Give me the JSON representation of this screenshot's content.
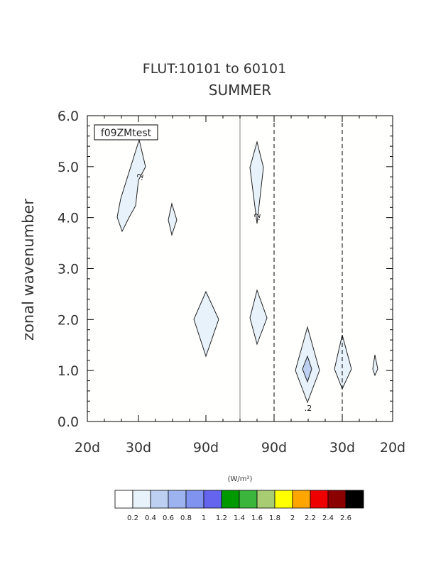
{
  "chart_data": {
    "type": "contour",
    "title": "FLUT:10101 to 60101",
    "subtitle": "SUMMER",
    "case_label": "f09ZMtest",
    "ylabel": "zonal wavenumber",
    "ylim": [
      0,
      6
    ],
    "yticks": [
      "0.0",
      "1.0",
      "2.0",
      "3.0",
      "4.0",
      "5.0",
      "6.0"
    ],
    "xlim": [
      -1,
      1
    ],
    "xticks": [
      "20d",
      "30d",
      "90d",
      "90d",
      "30d",
      "20d"
    ],
    "colorbar": {
      "units": "(W/m²)",
      "levels": [
        "0.2",
        "0.4",
        "0.6",
        "0.8",
        "1",
        "1.2",
        "1.4",
        "1.6",
        "1.8",
        "2",
        "2.2",
        "2.4",
        "2.6"
      ],
      "colors": [
        "#ffffff",
        "#e8f2fb",
        "#bdd0f2",
        "#9db3f0",
        "#7f93ef",
        "#6464ef",
        "#009a00",
        "#3cb53c",
        "#a8cc72",
        "#ffff00",
        "#ffa500",
        "#ee0000",
        "#8b0000",
        "#000000"
      ]
    },
    "contour_labels": [
      ".2",
      ".2",
      ".2"
    ]
  }
}
